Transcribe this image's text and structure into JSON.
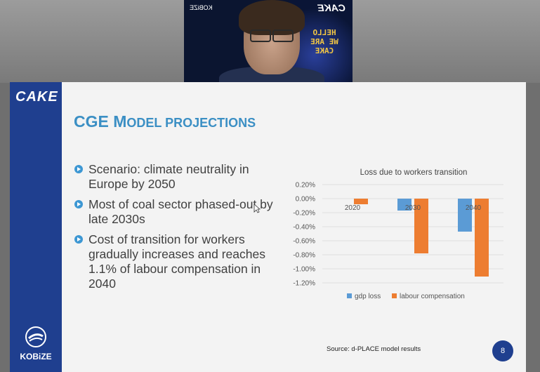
{
  "webcam": {
    "neon_text": [
      "HELLO",
      "WE ARE",
      "CAKE"
    ],
    "logo_text": "CAKE",
    "kobize_text": "KOBiZE"
  },
  "slide": {
    "logo": "CAKE",
    "title_big": "CGE M",
    "title_rest": "ODEL PROJECTIONS",
    "bullets": [
      "Scenario: climate neutrality in Europe by 2050",
      "Most of coal sector phased-out by late 2030s",
      "Cost of transition for workers gradually increases and reaches 1.1% of labour compensation in 2040"
    ],
    "source": "Source: d-PLACE model results",
    "page_number": "8",
    "kobize_label": "KOBiZE"
  },
  "colors": {
    "brand_blue": "#1f3f8f",
    "title_blue": "#3b8fc4",
    "series_gdp": "#5b9bd5",
    "series_labour": "#ed7d31"
  },
  "chart_data": {
    "type": "bar",
    "title": "Loss due to workers transition",
    "categories": [
      "2020",
      "2030",
      "2040"
    ],
    "series": [
      {
        "name": "gdp loss",
        "values": [
          0.0,
          -0.17,
          -0.47
        ]
      },
      {
        "name": "labour compensation",
        "values": [
          -0.08,
          -0.78,
          -1.11
        ]
      }
    ],
    "yticks": [
      "0.20%",
      "0.00%",
      "-0.20%",
      "-0.40%",
      "-0.60%",
      "-0.80%",
      "-1.00%",
      "-1.20%"
    ],
    "ylim": [
      -1.2,
      0.2
    ],
    "legend": "bottom",
    "grid": true
  }
}
